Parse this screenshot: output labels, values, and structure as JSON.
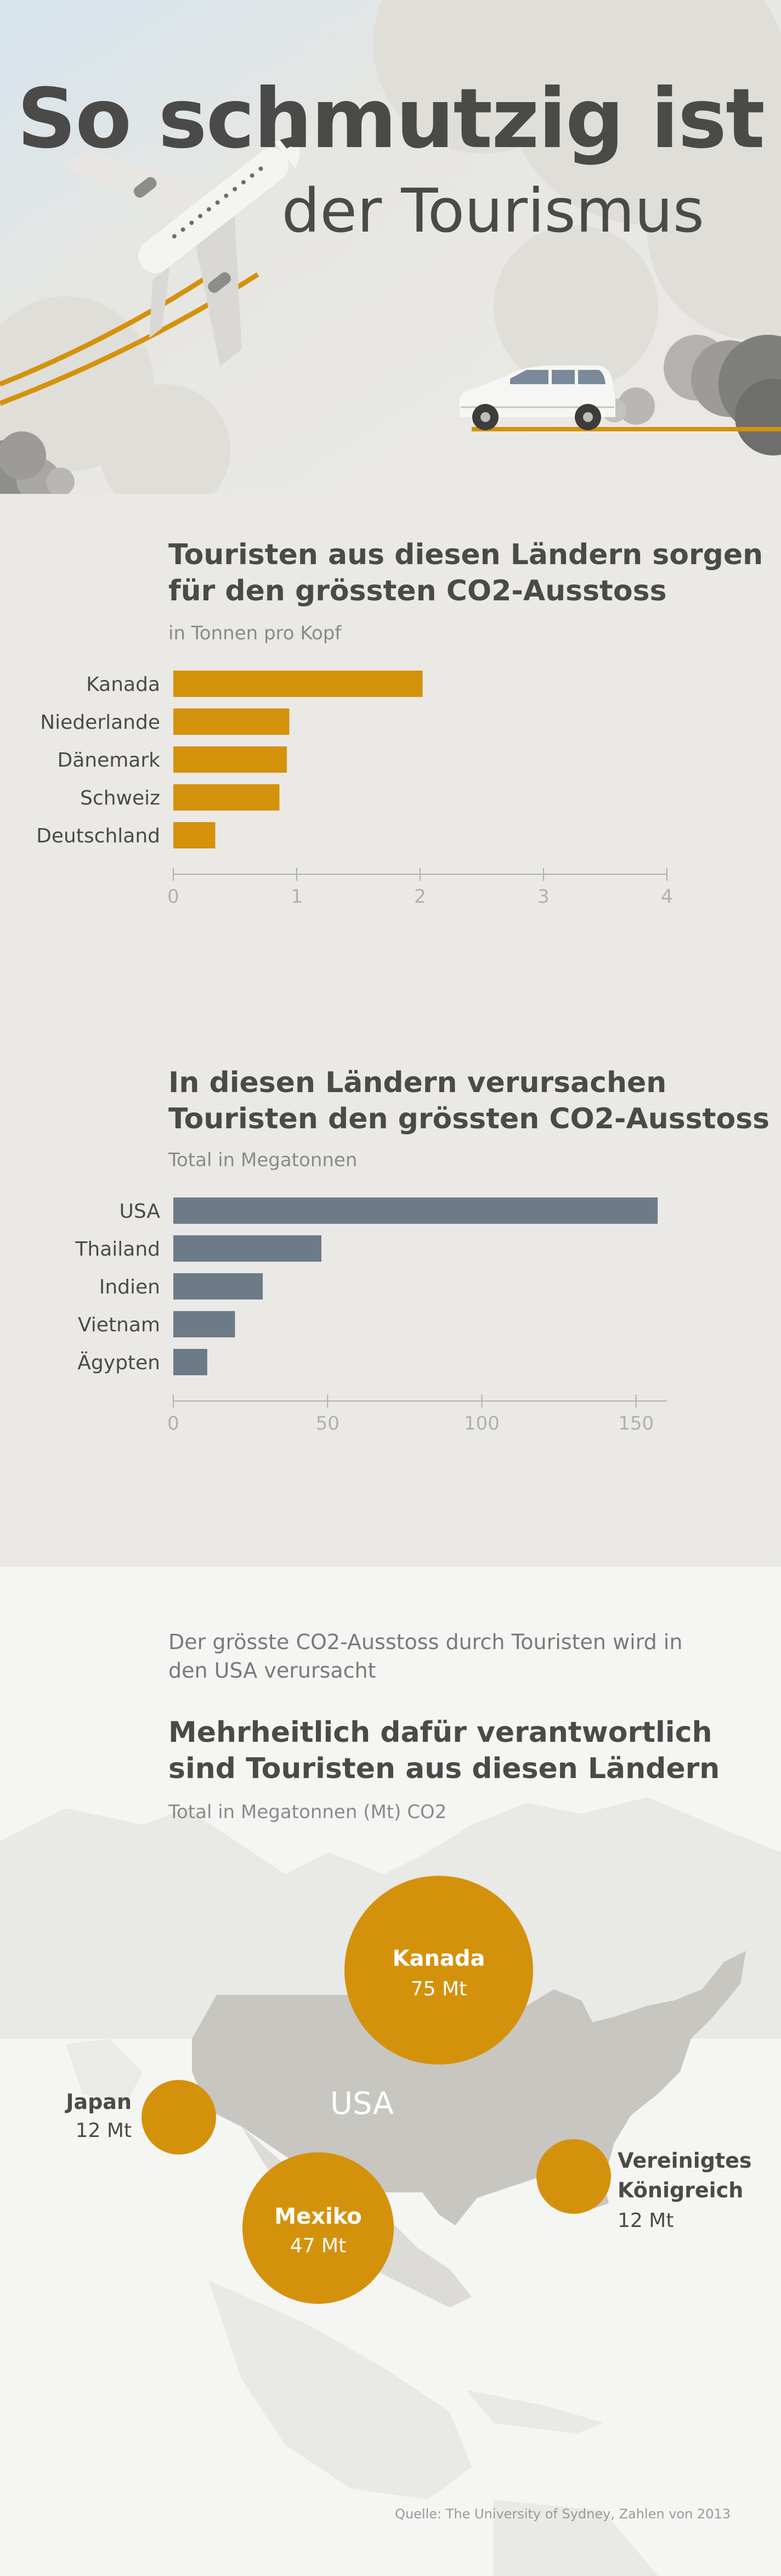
{
  "header": {
    "title_line1": "So schmutzig ist",
    "title_line2": "der Tourismus"
  },
  "colors": {
    "orange": "#d4920c",
    "slate": "#6d7b89",
    "text": "#4a4a48",
    "land": "#c8c6c1"
  },
  "icons": {
    "plane": "airplane-icon",
    "car": "car-icon"
  },
  "chart_data": [
    {
      "type": "bar",
      "orientation": "horizontal",
      "title": "Touristen aus diesen Ländern sorgen für den grössten  CO2-Ausstoss",
      "subtitle": "in Tonnen pro Kopf",
      "categories": [
        "Kanada",
        "Niederlande",
        "Dänemark",
        "Schweiz",
        "Deutschland"
      ],
      "values": [
        2.02,
        0.94,
        0.92,
        0.86,
        0.34
      ],
      "xlim": [
        0,
        4
      ],
      "xticks": [
        "0",
        "1",
        "2",
        "3",
        "4"
      ],
      "color": "#d4920c",
      "grid": false
    },
    {
      "type": "bar",
      "orientation": "horizontal",
      "title": "In diesen Ländern verursachen Touristen den grössten CO2-Ausstoss",
      "subtitle": "Total in Megatonnen",
      "categories": [
        "USA",
        "Thailand",
        "Indien",
        "Vietnam",
        "Ägypten"
      ],
      "values": [
        157,
        48,
        29,
        20,
        11
      ],
      "xlim": [
        0,
        160
      ],
      "xticks": [
        "0",
        "50",
        "100",
        "150"
      ],
      "color": "#6d7b89",
      "grid": false
    }
  ],
  "map": {
    "intro": "Der grösste CO2-Ausstoss durch Touristen wird in den USA verursacht",
    "title": "Mehrheitlich dafür verantwortlich sind Touristen aus diesen Ländern",
    "subtitle": "Total in Megatonnen  (Mt) CO2",
    "center_label": "USA",
    "bubbles": [
      {
        "country": "Kanada",
        "value": 75,
        "label": "75 Mt"
      },
      {
        "country": "Mexiko",
        "value": 47,
        "label": "47 Mt"
      },
      {
        "country": "Japan",
        "value": 12,
        "label": "12 Mt"
      },
      {
        "country_line1": "Vereinigtes",
        "country_line2": "Königreich",
        "value": 12,
        "label": "12 Mt"
      }
    ]
  },
  "source": "Quelle: The University of Sydney, Zahlen von 2013"
}
